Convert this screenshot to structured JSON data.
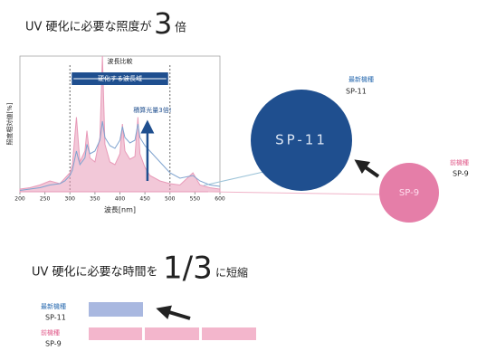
{
  "heading1": {
    "text": "UV 硬化に必要な照度が",
    "big": "3",
    "suffix": "倍"
  },
  "chart_data": {
    "type": "line",
    "title": "波長比較",
    "x_label": "波長[nm]",
    "y_label": "照度相対値[%]",
    "annotations": [
      "硬化する波長域",
      "積算光量3倍!"
    ],
    "x": [
      200,
      220,
      240,
      260,
      280,
      290,
      300,
      305,
      313,
      320,
      330,
      334,
      340,
      350,
      360,
      365,
      370,
      380,
      390,
      400,
      405,
      410,
      420,
      430,
      436,
      440,
      450,
      460,
      480,
      500,
      520,
      546,
      560,
      580,
      600
    ],
    "series": [
      {
        "color": "#e89ab8",
        "values": [
          2,
          3,
          5,
          8,
          6,
          10,
          14,
          20,
          55,
          22,
          30,
          45,
          25,
          22,
          40,
          100,
          35,
          22,
          20,
          28,
          50,
          30,
          24,
          26,
          55,
          28,
          18,
          12,
          8,
          6,
          5,
          14,
          5,
          3,
          2
        ]
      },
      {
        "color": "#7fa3cf",
        "values": [
          1,
          2,
          3,
          5,
          6,
          8,
          12,
          16,
          30,
          20,
          25,
          35,
          28,
          30,
          38,
          52,
          40,
          34,
          32,
          38,
          48,
          40,
          36,
          38,
          50,
          40,
          34,
          30,
          22,
          14,
          10,
          12,
          8,
          5,
          4
        ]
      }
    ],
    "xlim": [
      200,
      600
    ],
    "xticks": [
      200,
      250,
      300,
      350,
      400,
      450,
      500,
      550,
      600
    ],
    "ylim": [
      0,
      100
    ]
  },
  "devices": [
    {
      "tag": "最新機種",
      "model": "SP-11",
      "circle": "SP-11"
    },
    {
      "tag": "前機種",
      "model": "SP-9",
      "circle": "SP-9"
    }
  ],
  "heading2": {
    "text": "UV 硬化に必要な時間を",
    "big": "1/3",
    "suffix": "に短縮"
  },
  "bars": [
    {
      "tag": "最新機種",
      "model": "SP-11"
    },
    {
      "tag": "前機種",
      "model": "SP-9"
    }
  ]
}
